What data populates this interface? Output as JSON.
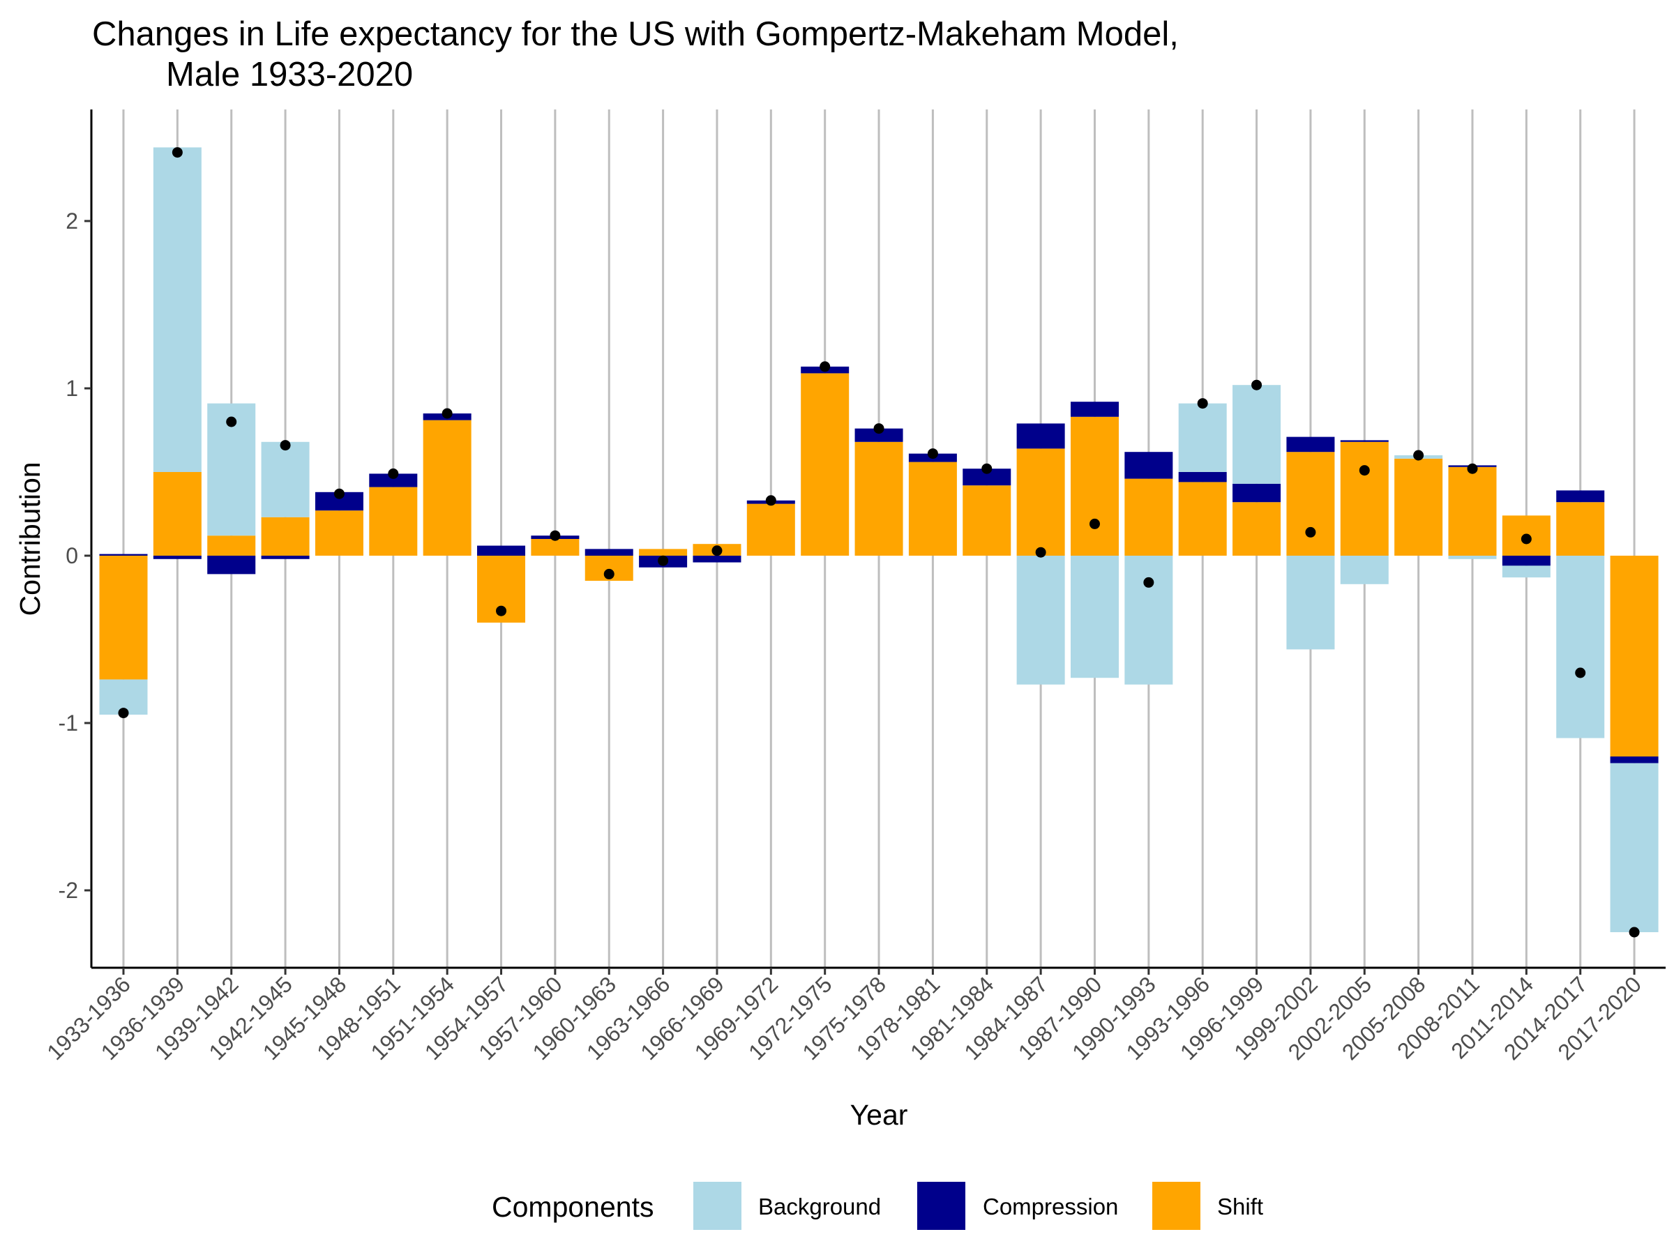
{
  "chart_data": {
    "type": "bar",
    "stacked": true,
    "title": "Changes in Life expectancy for the US with Gompertz-Makeham Model,",
    "subtitle": "Male 1933-2020",
    "xlabel": "Year",
    "ylabel": "Contribution",
    "ylim": [
      -2.5,
      2.6
    ],
    "yticks": [
      -2,
      -1,
      0,
      1,
      2
    ],
    "grid": "vertical-major",
    "legend": {
      "title": "Components",
      "position": "bottom"
    },
    "categories": [
      "1933-1936",
      "1936-1939",
      "1939-1942",
      "1942-1945",
      "1945-1948",
      "1948-1951",
      "1951-1954",
      "1954-1957",
      "1957-1960",
      "1960-1963",
      "1963-1966",
      "1966-1969",
      "1969-1972",
      "1972-1975",
      "1975-1978",
      "1978-1981",
      "1981-1984",
      "1984-1987",
      "1987-1990",
      "1990-1993",
      "1993-1996",
      "1996-1999",
      "1999-2002",
      "2002-2005",
      "2005-2008",
      "2008-2011",
      "2011-2014",
      "2014-2017",
      "2017-2020"
    ],
    "series": [
      {
        "name": "Shift",
        "color": "#FFA500",
        "values": [
          -0.74,
          0.5,
          0.12,
          0.23,
          0.27,
          0.41,
          0.81,
          -0.4,
          0.1,
          -0.15,
          0.04,
          0.07,
          0.31,
          1.09,
          0.68,
          0.56,
          0.42,
          0.64,
          0.83,
          0.46,
          0.44,
          0.32,
          0.62,
          0.68,
          0.58,
          0.53,
          0.24,
          0.32,
          -1.2
        ]
      },
      {
        "name": "Compression",
        "color": "#00008B",
        "values": [
          0.01,
          -0.02,
          -0.11,
          -0.02,
          0.11,
          0.08,
          0.04,
          0.06,
          0.02,
          0.04,
          -0.07,
          -0.04,
          0.02,
          0.04,
          0.08,
          0.05,
          0.1,
          0.15,
          0.09,
          0.16,
          0.06,
          0.11,
          0.09,
          0.01,
          0.0,
          0.01,
          -0.06,
          0.07,
          -0.04
        ]
      },
      {
        "name": "Background",
        "color": "#ADD8E6",
        "values": [
          -0.21,
          1.94,
          0.79,
          0.45,
          0.0,
          0.0,
          0.0,
          0.0,
          0.0,
          0.0,
          0.0,
          0.0,
          0.0,
          0.0,
          0.0,
          0.0,
          0.0,
          -0.77,
          -0.73,
          -0.77,
          0.41,
          0.59,
          -0.56,
          -0.17,
          0.02,
          -0.02,
          -0.07,
          -1.09,
          -1.01
        ]
      }
    ],
    "totals": [
      -0.94,
      2.41,
      0.8,
      0.66,
      0.37,
      0.49,
      0.85,
      -0.33,
      0.12,
      -0.11,
      -0.03,
      0.03,
      0.33,
      1.13,
      0.76,
      0.61,
      0.52,
      0.02,
      0.19,
      -0.16,
      0.91,
      1.02,
      0.14,
      0.51,
      0.6,
      0.52,
      0.1,
      -0.7,
      -2.25
    ]
  }
}
